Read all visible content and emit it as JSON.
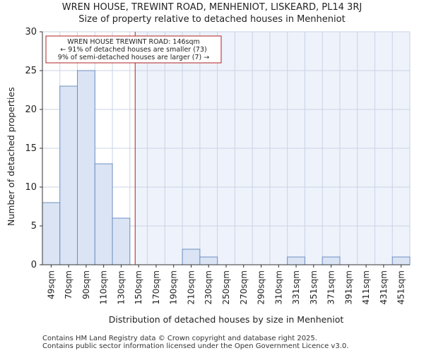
{
  "chart_data": {
    "type": "bar",
    "title": "WREN HOUSE, TREWINT ROAD, MENHENIOT, LISKEARD, PL14 3RJ",
    "subtitle": "Size of property relative to detached houses in Menheniot",
    "xlabel": "Distribution of detached houses by size in Menheniot",
    "ylabel": "Number of detached properties",
    "categories": [
      "49sqm",
      "70sqm",
      "90sqm",
      "110sqm",
      "130sqm",
      "150sqm",
      "170sqm",
      "190sqm",
      "210sqm",
      "230sqm",
      "250sqm",
      "270sqm",
      "290sqm",
      "310sqm",
      "331sqm",
      "351sqm",
      "371sqm",
      "391sqm",
      "411sqm",
      "431sqm",
      "451sqm"
    ],
    "values": [
      8,
      23,
      25,
      13,
      6,
      0,
      0,
      0,
      2,
      1,
      0,
      0,
      0,
      0,
      1,
      0,
      1,
      0,
      0,
      0,
      1
    ],
    "ylim": [
      0,
      30
    ],
    "yticks": [
      0,
      5,
      10,
      15,
      20,
      25,
      30
    ],
    "grid": true,
    "marker": {
      "value": 146,
      "unit": "sqm",
      "color": "#b22222",
      "annotation": [
        "WREN HOUSE TREWINT ROAD: 146sqm",
        "← 91% of detached houses are smaller (73)",
        "9% of semi-detached houses are larger (7) →"
      ]
    },
    "colors": {
      "bar_fill": "#dbe4f4",
      "bar_edge": "#6e8fc2",
      "highlight_bg": "#eef2fa",
      "grid": "#c9d3e6"
    }
  },
  "footer": {
    "line1": "Contains HM Land Registry data © Crown copyright and database right 2025.",
    "line2": "Contains public sector information licensed under the Open Government Licence v3.0."
  }
}
